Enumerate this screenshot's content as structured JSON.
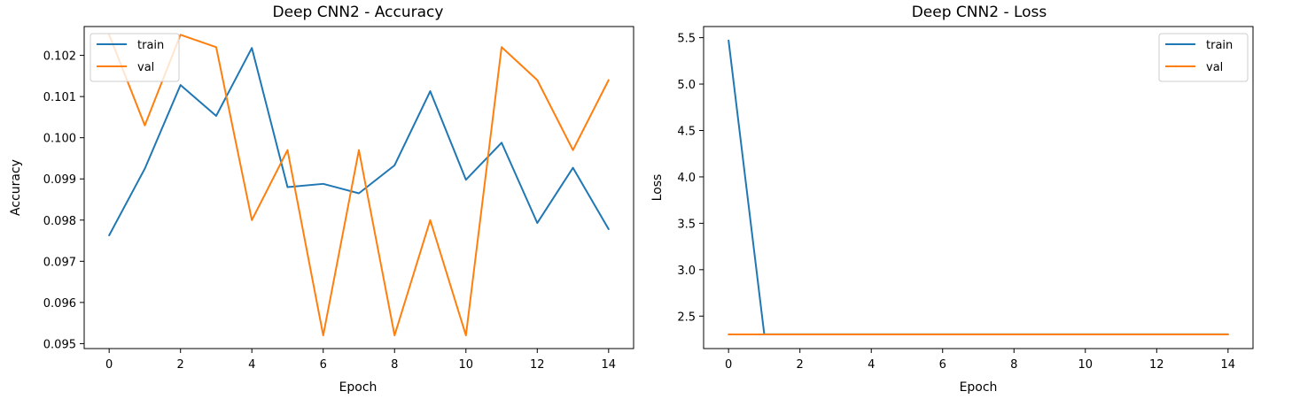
{
  "colors": {
    "train": "#1f77b4",
    "val": "#ff7f0e"
  },
  "chart_data": [
    {
      "type": "line",
      "title": "Deep CNN2 - Accuracy",
      "xlabel": "Epoch",
      "ylabel": "Accuracy",
      "x": [
        0,
        1,
        2,
        3,
        4,
        5,
        6,
        7,
        8,
        9,
        10,
        11,
        12,
        13,
        14
      ],
      "xticks": [
        0,
        2,
        4,
        6,
        8,
        10,
        12,
        14
      ],
      "xlim": [
        -0.7,
        14.7
      ],
      "yticks": [
        0.095,
        0.096,
        0.097,
        0.098,
        0.099,
        0.1,
        0.101,
        0.102
      ],
      "ytick_labels": [
        "0.095",
        "0.096",
        "0.097",
        "0.098",
        "0.099",
        "0.100",
        "0.101",
        "0.102"
      ],
      "ylim": [
        0.09488,
        0.1027
      ],
      "legend": "upper left",
      "grid": false,
      "series": [
        {
          "name": "train",
          "color": "#1f77b4",
          "values": [
            0.09763,
            0.09925,
            0.10128,
            0.10053,
            0.10218,
            0.0988,
            0.09888,
            0.09865,
            0.09933,
            0.10113,
            0.09898,
            0.09988,
            0.09793,
            0.09927,
            0.09778
          ]
        },
        {
          "name": "val",
          "color": "#ff7f0e",
          "values": [
            0.1025,
            0.1003,
            0.1025,
            0.1022,
            0.098,
            0.0997,
            0.0952,
            0.0997,
            0.0952,
            0.098,
            0.0952,
            0.1022,
            0.1014,
            0.0997,
            0.1014
          ]
        }
      ]
    },
    {
      "type": "line",
      "title": "Deep CNN2 - Loss",
      "xlabel": "Epoch",
      "ylabel": "Loss",
      "x": [
        0,
        1,
        2,
        3,
        4,
        5,
        6,
        7,
        8,
        9,
        10,
        11,
        12,
        13,
        14
      ],
      "xticks": [
        0,
        2,
        4,
        6,
        8,
        10,
        12,
        14
      ],
      "xlim": [
        -0.7,
        14.7
      ],
      "yticks": [
        2.5,
        3.0,
        3.5,
        4.0,
        4.5,
        5.0,
        5.5
      ],
      "ytick_labels": [
        "2.5",
        "3.0",
        "3.5",
        "4.0",
        "4.5",
        "5.0",
        "5.5"
      ],
      "ylim": [
        2.15,
        5.62
      ],
      "legend": "upper right",
      "grid": false,
      "series": [
        {
          "name": "train",
          "color": "#1f77b4",
          "values": [
            5.47,
            2.305,
            2.304,
            2.304,
            2.304,
            2.304,
            2.304,
            2.304,
            2.304,
            2.304,
            2.304,
            2.304,
            2.304,
            2.304,
            2.304
          ]
        },
        {
          "name": "val",
          "color": "#ff7f0e",
          "values": [
            2.303,
            2.303,
            2.303,
            2.303,
            2.303,
            2.303,
            2.303,
            2.303,
            2.303,
            2.303,
            2.303,
            2.303,
            2.303,
            2.303,
            2.303
          ]
        }
      ]
    }
  ]
}
